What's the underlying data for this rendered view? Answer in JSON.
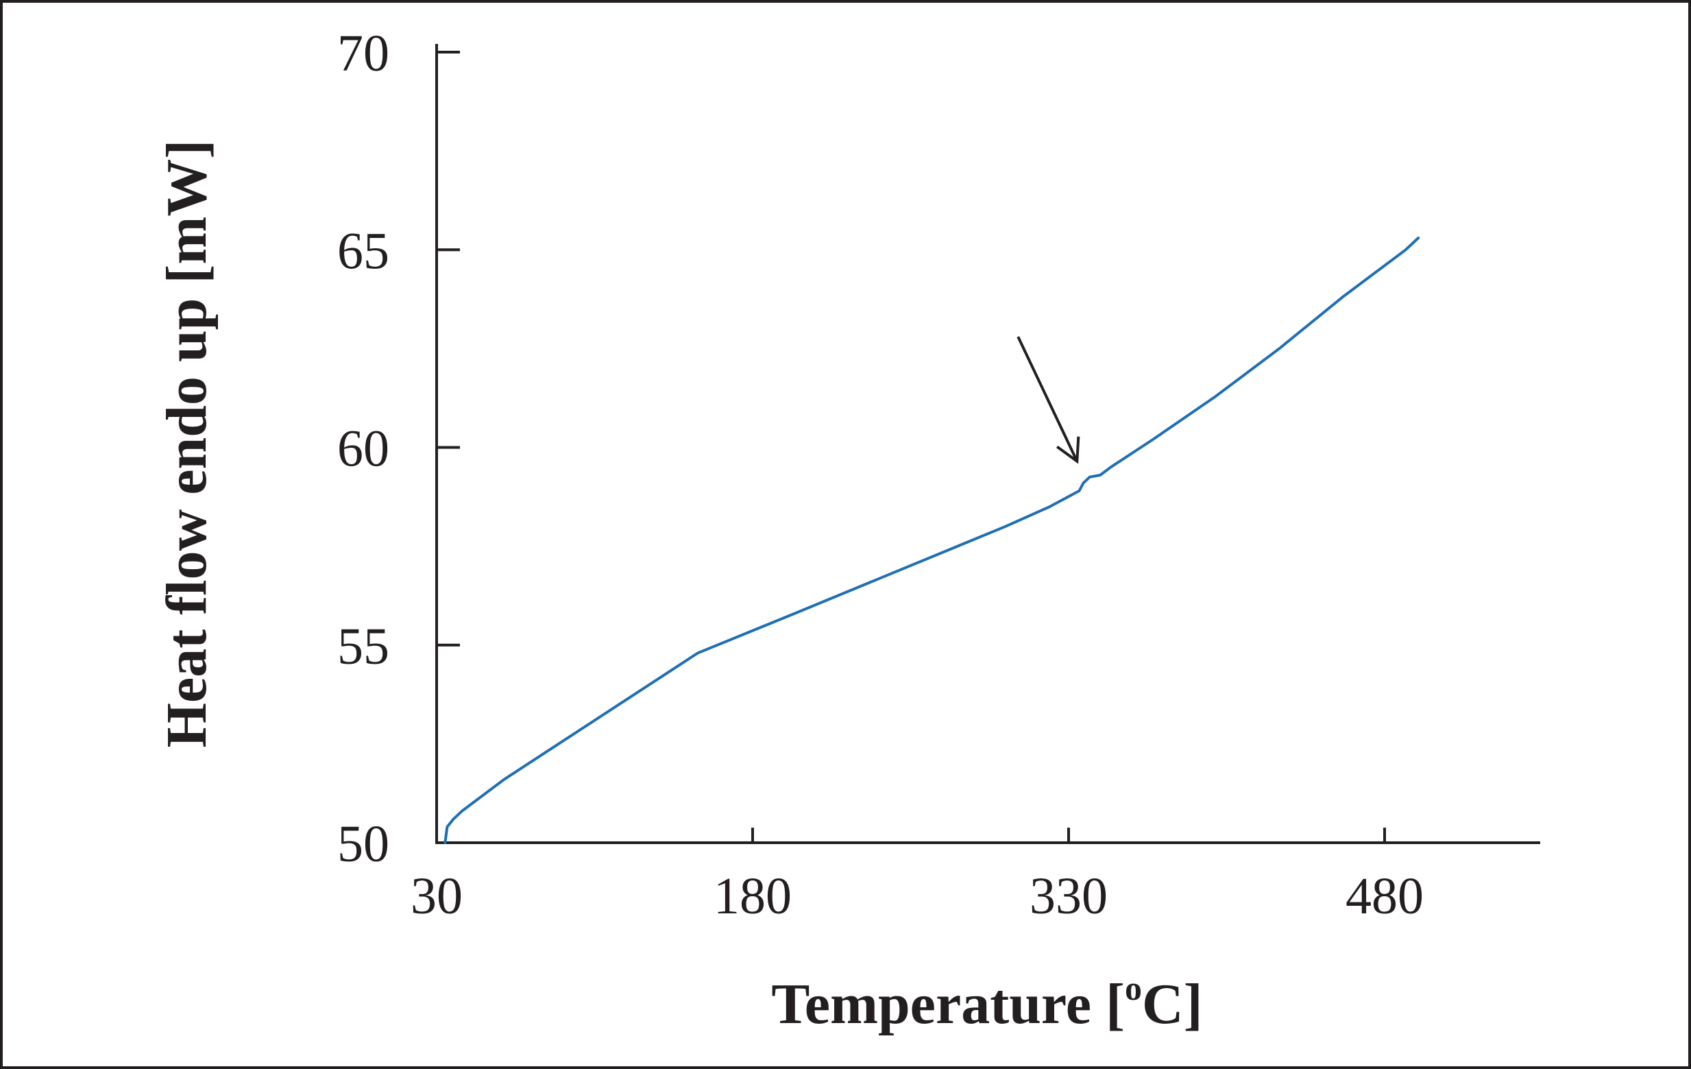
{
  "chart_data": {
    "type": "line",
    "xlabel": "Temperature [",
    "xlabel_sup": "o",
    "xlabel_tail": "C]",
    "ylabel": "Heat flow endo up [mW]",
    "x_ticks": [
      "30",
      "180",
      "330",
      "480"
    ],
    "x_tick_values": [
      30,
      180,
      330,
      480
    ],
    "y_ticks": [
      "50",
      "55",
      "60",
      "65",
      "70"
    ],
    "y_tick_values": [
      50,
      55,
      60,
      65,
      70
    ],
    "xlim": [
      30,
      540
    ],
    "ylim": [
      50,
      70
    ],
    "grid": false,
    "line_color": "#1f6fb4",
    "axis_color": "#231f20",
    "series": [
      {
        "x": [
          34,
          35,
          38,
          42,
          62,
          154,
          200,
          250,
          300,
          321,
          335,
          337,
          340,
          345,
          350,
          370,
          400,
          430,
          460,
          490,
          496
        ],
        "y": [
          50.0,
          50.4,
          50.6,
          50.8,
          51.6,
          54.8,
          55.8,
          56.9,
          58.0,
          58.5,
          58.9,
          59.1,
          59.25,
          59.3,
          59.5,
          60.2,
          61.3,
          62.5,
          63.8,
          65.0,
          65.3
        ]
      }
    ],
    "annotations": [
      {
        "type": "arrow",
        "from": [
          306,
          62.8
        ],
        "to": [
          334,
          59.65
        ]
      }
    ]
  }
}
